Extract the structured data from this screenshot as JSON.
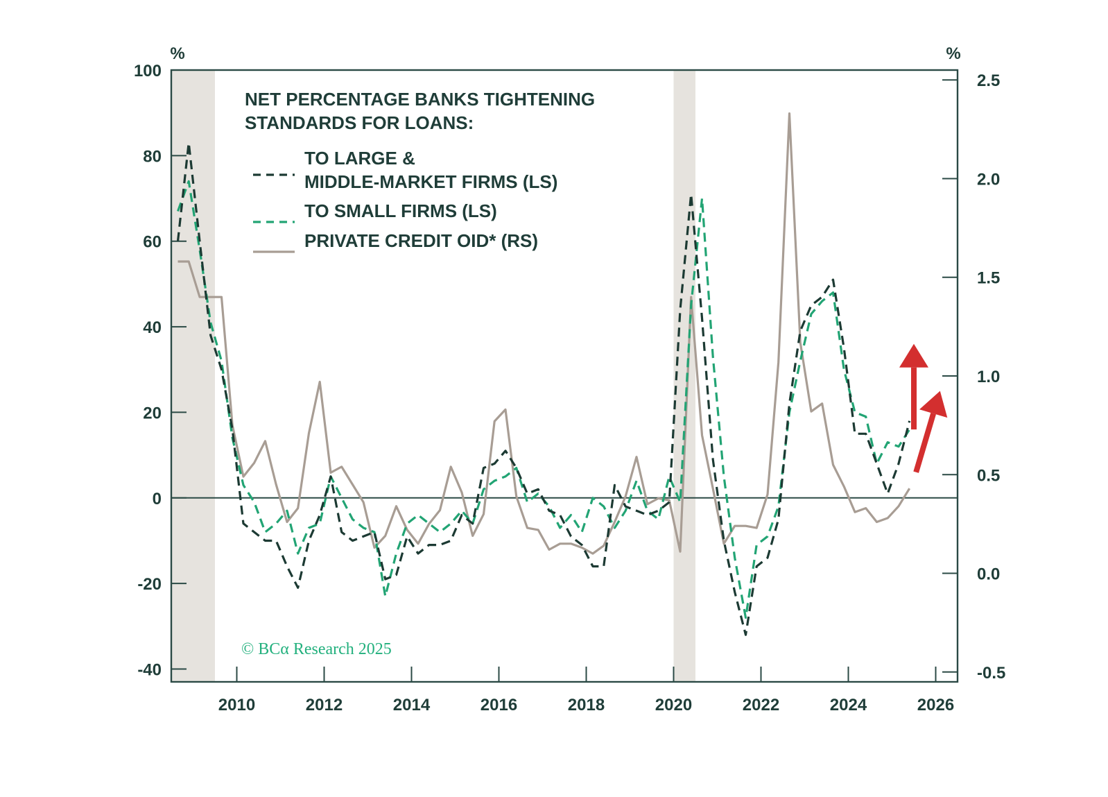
{
  "chart_data": {
    "type": "line",
    "legend": {
      "title_lines": [
        "NET PERCENTAGE BANKS TIGHTENING",
        "STANDARDS FOR LOANS:"
      ],
      "placement": "top-left",
      "entries": [
        {
          "lines": [
            "TO LARGE &",
            "MIDDLE-MARKET FIRMS (LS)"
          ],
          "series": "large"
        },
        {
          "lines": [
            "TO SMALL FIRMS (LS)"
          ],
          "series": "small"
        },
        {
          "lines": [
            "PRIVATE CREDIT OID* (RS)"
          ],
          "series": "oid"
        }
      ]
    },
    "left_axis": {
      "unit": "%",
      "range": [
        -43,
        100
      ],
      "ticks": [
        "100",
        "80",
        "60",
        "40",
        "20",
        "0",
        "-20",
        "-40"
      ],
      "tick_values": [
        100,
        80,
        60,
        40,
        20,
        0,
        -20,
        -40
      ]
    },
    "right_axis": {
      "unit": "%",
      "range": [
        -0.55,
        2.55
      ],
      "ticks": [
        "2.5",
        "2.0",
        "1.5",
        "1.0",
        "0.5",
        "0.0",
        "-0.5"
      ],
      "tick_values": [
        2.5,
        2.0,
        1.5,
        1.0,
        0.5,
        0.0,
        -0.5
      ]
    },
    "x_axis": {
      "range": [
        2008.5,
        2026.5
      ],
      "ticks": [
        "2010",
        "2012",
        "2014",
        "2016",
        "2018",
        "2020",
        "2022",
        "2024",
        "2026"
      ],
      "tick_values": [
        2010,
        2012,
        2014,
        2016,
        2018,
        2020,
        2022,
        2024,
        2026
      ]
    },
    "recessions": [
      [
        2008.5,
        2009.5
      ],
      [
        2020.0,
        2020.5
      ]
    ],
    "zero_line": 0,
    "series": [
      {
        "key": "large",
        "axis": "left",
        "style": "dashed",
        "color": "#1c3a33",
        "x": [
          2008.65,
          2008.9,
          2009.15,
          2009.4,
          2009.65,
          2009.9,
          2010.15,
          2010.4,
          2010.65,
          2010.9,
          2011.15,
          2011.4,
          2011.65,
          2011.9,
          2012.15,
          2012.4,
          2012.65,
          2012.9,
          2013.15,
          2013.4,
          2013.65,
          2013.9,
          2014.15,
          2014.4,
          2014.65,
          2014.9,
          2015.15,
          2015.4,
          2015.65,
          2015.9,
          2016.15,
          2016.4,
          2016.65,
          2016.9,
          2017.15,
          2017.4,
          2017.65,
          2017.9,
          2018.15,
          2018.4,
          2018.65,
          2018.9,
          2019.15,
          2019.4,
          2019.65,
          2019.9,
          2020.15,
          2020.4,
          2020.65,
          2020.9,
          2021.15,
          2021.4,
          2021.65,
          2021.9,
          2022.15,
          2022.4,
          2022.65,
          2022.9,
          2023.15,
          2023.4,
          2023.65,
          2023.9,
          2024.15,
          2024.4,
          2024.65,
          2024.9,
          2025.15,
          2025.4
        ],
        "values": [
          60,
          83,
          60,
          38,
          30,
          16,
          -6,
          -8,
          -10,
          -10,
          -16,
          -21,
          -10,
          -4,
          5,
          -8,
          -10,
          -9,
          -8,
          -19,
          -18,
          -9,
          -13,
          -11,
          -11,
          -10,
          -4,
          -6,
          7,
          8,
          11,
          7,
          1,
          2,
          -3,
          -4,
          -9,
          -11,
          -16,
          -16,
          3,
          -2,
          -3,
          -4,
          -3,
          -1,
          44,
          71,
          42,
          9,
          -10,
          -22,
          -32,
          -16,
          -14,
          -5,
          22,
          39,
          45,
          47,
          51,
          35,
          15,
          15,
          8,
          1,
          8,
          18
        ]
      },
      {
        "key": "small",
        "axis": "left",
        "style": "dashed",
        "color": "#22a474",
        "x": [
          2008.65,
          2008.9,
          2009.15,
          2009.4,
          2009.65,
          2009.9,
          2010.15,
          2010.4,
          2010.65,
          2010.9,
          2011.15,
          2011.4,
          2011.65,
          2011.9,
          2012.15,
          2012.4,
          2012.65,
          2012.9,
          2013.15,
          2013.4,
          2013.65,
          2013.9,
          2014.15,
          2014.4,
          2014.65,
          2014.9,
          2015.15,
          2015.4,
          2015.65,
          2015.9,
          2016.15,
          2016.4,
          2016.65,
          2016.9,
          2017.15,
          2017.4,
          2017.65,
          2017.9,
          2018.15,
          2018.4,
          2018.65,
          2018.9,
          2019.15,
          2019.4,
          2019.65,
          2019.9,
          2020.15,
          2020.4,
          2020.65,
          2020.9,
          2021.15,
          2021.4,
          2021.65,
          2021.9,
          2022.15,
          2022.4,
          2022.65,
          2022.9,
          2023.15,
          2023.4,
          2023.65,
          2023.9,
          2024.15,
          2024.4,
          2024.65,
          2024.9,
          2025.15,
          2025.4
        ],
        "values": [
          67,
          74,
          58,
          41,
          32,
          14,
          3,
          -1,
          -8,
          -6,
          -3,
          -13,
          -7,
          -6,
          5,
          0,
          -5,
          -7,
          -8,
          -23,
          -13,
          -6,
          -4,
          -6,
          -8,
          -6,
          -3,
          -6,
          2,
          4,
          5,
          7,
          -1,
          1,
          -2,
          -7,
          -4,
          -8,
          0,
          -2,
          -7,
          -3,
          4,
          -3,
          -5,
          5,
          -1,
          45,
          70,
          33,
          5,
          -14,
          -28,
          -11,
          -9,
          -2,
          20,
          32,
          43,
          46,
          48,
          30,
          20,
          19,
          8,
          13,
          12,
          16
        ]
      },
      {
        "key": "oid",
        "axis": "right",
        "style": "solid",
        "color": "#a89d94",
        "x": [
          2008.65,
          2008.9,
          2009.15,
          2009.4,
          2009.65,
          2009.9,
          2010.15,
          2010.4,
          2010.65,
          2010.9,
          2011.15,
          2011.4,
          2011.65,
          2011.9,
          2012.15,
          2012.4,
          2012.65,
          2012.9,
          2013.15,
          2013.4,
          2013.65,
          2013.9,
          2014.15,
          2014.4,
          2014.65,
          2014.9,
          2015.15,
          2015.4,
          2015.65,
          2015.9,
          2016.15,
          2016.4,
          2016.65,
          2016.9,
          2017.15,
          2017.4,
          2017.65,
          2017.9,
          2018.15,
          2018.4,
          2018.65,
          2018.9,
          2019.15,
          2019.4,
          2019.65,
          2019.9,
          2020.15,
          2020.4,
          2020.65,
          2020.9,
          2021.15,
          2021.4,
          2021.65,
          2021.9,
          2022.15,
          2022.4,
          2022.65,
          2022.9,
          2023.15,
          2023.4,
          2023.65,
          2023.9,
          2024.15,
          2024.4,
          2024.65,
          2024.9,
          2025.15,
          2025.4
        ],
        "values": [
          1.58,
          1.58,
          1.4,
          1.4,
          1.4,
          0.75,
          0.49,
          0.56,
          0.67,
          0.45,
          0.26,
          0.33,
          0.71,
          0.97,
          0.51,
          0.54,
          0.45,
          0.36,
          0.13,
          0.19,
          0.34,
          0.22,
          0.15,
          0.25,
          0.32,
          0.54,
          0.41,
          0.19,
          0.3,
          0.77,
          0.83,
          0.39,
          0.23,
          0.22,
          0.12,
          0.15,
          0.15,
          0.13,
          0.1,
          0.14,
          0.26,
          0.39,
          0.59,
          0.35,
          0.38,
          0.37,
          0.11,
          1.4,
          0.7,
          0.43,
          0.15,
          0.24,
          0.24,
          0.23,
          0.4,
          1.07,
          2.33,
          1.17,
          0.82,
          0.86,
          0.55,
          0.44,
          0.31,
          0.33,
          0.26,
          0.28,
          0.34,
          0.43
        ]
      }
    ],
    "annotations": [
      {
        "type": "arrow",
        "color": "#d32f2f",
        "from": [
          2025.5,
          16
        ],
        "to": [
          2025.5,
          36
        ]
      },
      {
        "type": "arrow",
        "color": "#d32f2f",
        "from": [
          2025.55,
          6
        ],
        "to": [
          2026.1,
          25
        ]
      }
    ],
    "credit": "© BCα Research 2025"
  }
}
